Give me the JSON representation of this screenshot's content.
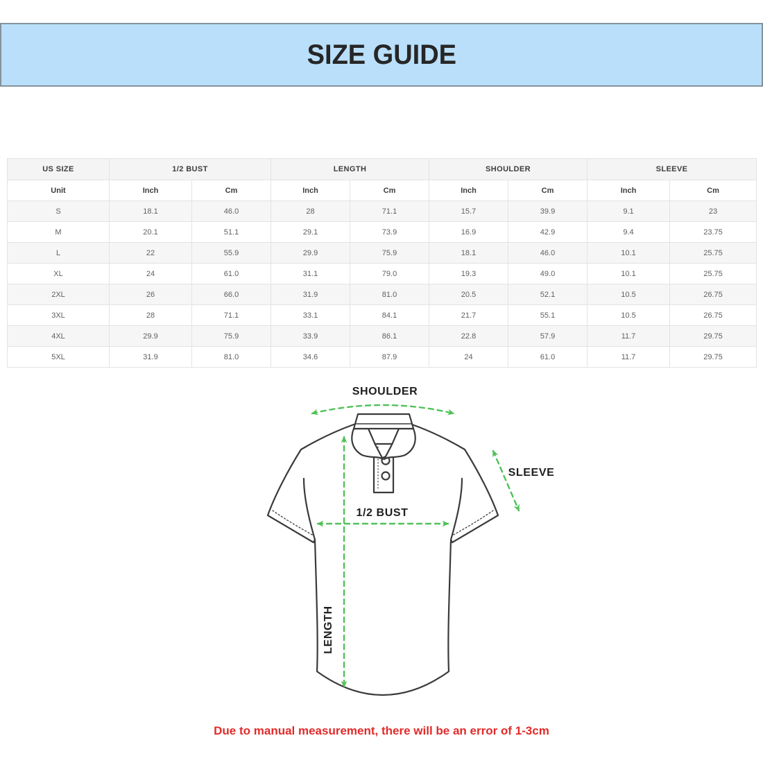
{
  "header": {
    "title": "SIZE GUIDE",
    "bg_color": "#b9dffa",
    "border_color": "#84929c"
  },
  "table": {
    "group_headers": [
      "US SIZE",
      "1/2 BUST",
      "LENGTH",
      "SHOULDER",
      "SLEEVE"
    ],
    "unit_row": [
      "Unit",
      "Inch",
      "Cm",
      "Inch",
      "Cm",
      "Inch",
      "Cm",
      "Inch",
      "Cm"
    ],
    "rows": [
      [
        "S",
        "18.1",
        "46.0",
        "28",
        "71.1",
        "15.7",
        "39.9",
        "9.1",
        "23"
      ],
      [
        "M",
        "20.1",
        "51.1",
        "29.1",
        "73.9",
        "16.9",
        "42.9",
        "9.4",
        "23.75"
      ],
      [
        "L",
        "22",
        "55.9",
        "29.9",
        "75.9",
        "18.1",
        "46.0",
        "10.1",
        "25.75"
      ],
      [
        "XL",
        "24",
        "61.0",
        "31.1",
        "79.0",
        "19.3",
        "49.0",
        "10.1",
        "25.75"
      ],
      [
        "2XL",
        "26",
        "66.0",
        "31.9",
        "81.0",
        "20.5",
        "52.1",
        "10.5",
        "26.75"
      ],
      [
        "3XL",
        "28",
        "71.1",
        "33.1",
        "84.1",
        "21.7",
        "55.1",
        "10.5",
        "26.75"
      ],
      [
        "4XL",
        "29.9",
        "75.9",
        "33.9",
        "86.1",
        "22.8",
        "57.9",
        "11.7",
        "29.75"
      ],
      [
        "5XL",
        "31.9",
        "81.0",
        "34.6",
        "87.9",
        "24",
        "61.0",
        "11.7",
        "29.75"
      ]
    ]
  },
  "diagram": {
    "labels": {
      "shoulder": "SHOULDER",
      "sleeve": "SLEEVE",
      "bust": "1/2 BUST",
      "length": "LENGTH"
    },
    "arrow_color": "#50c158",
    "outline_color": "#3a3a3a"
  },
  "disclaimer": {
    "text": "Due to manual measurement, there will be an error of 1-3cm",
    "color": "#e22a2a"
  }
}
